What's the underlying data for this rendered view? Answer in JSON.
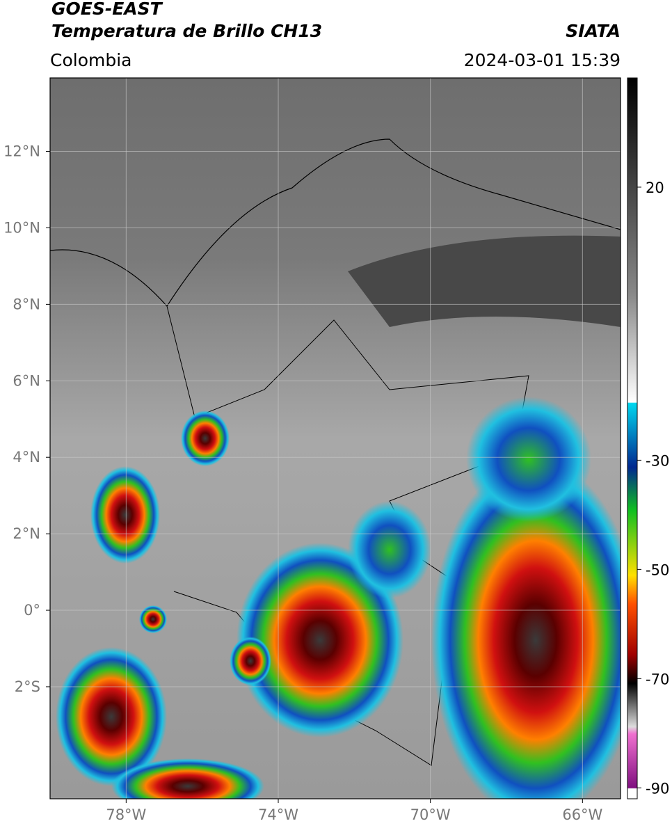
{
  "header": {
    "title": "GOES-EAST",
    "subtitle": "Temperatura de Brillo CH13",
    "region": "Colombia",
    "source": "SIATA",
    "timestamp": "2024-03-01 15:39"
  },
  "map": {
    "xlim": [
      -80,
      -65
    ],
    "ylim": [
      -4.93,
      13.92
    ],
    "xticks": [
      {
        "value": -78,
        "label": "78°W"
      },
      {
        "value": -74,
        "label": "74°W"
      },
      {
        "value": -70,
        "label": "70°W"
      },
      {
        "value": -66,
        "label": "66°W"
      }
    ],
    "yticks": [
      {
        "value": 12,
        "label": "12°N"
      },
      {
        "value": 10,
        "label": "10°N"
      },
      {
        "value": 8,
        "label": "8°N"
      },
      {
        "value": 6,
        "label": "6°N"
      },
      {
        "value": 4,
        "label": "4°N"
      },
      {
        "value": 2,
        "label": "2°N"
      },
      {
        "value": 0,
        "label": "0°"
      },
      {
        "value": -2,
        "label": "2°S"
      }
    ],
    "grid": true
  },
  "colorbar": {
    "lim": [
      -92,
      40
    ],
    "ticks": [
      20,
      -30,
      -50,
      -70,
      -90
    ]
  }
}
